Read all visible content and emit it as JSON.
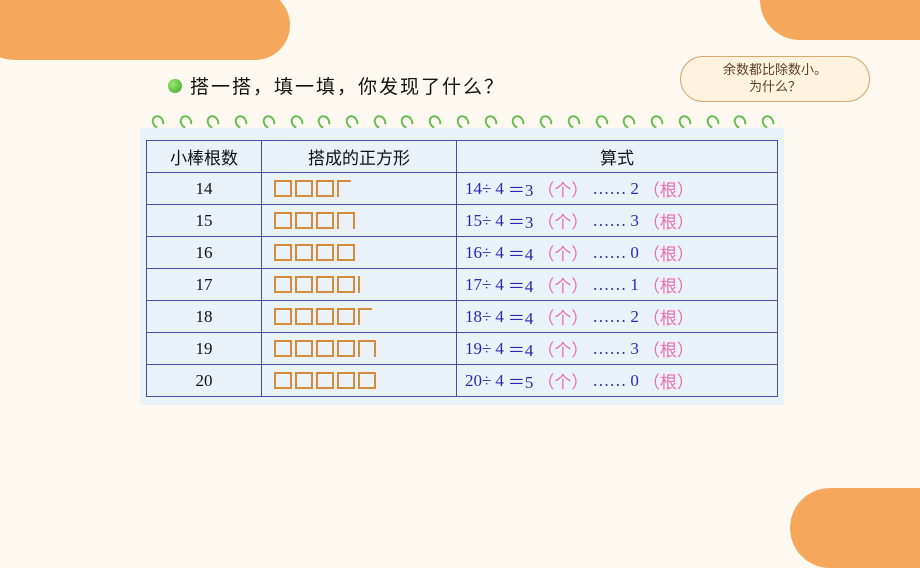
{
  "prompt": "搭一搭，填一填，你发现了什么？",
  "bubble": {
    "line1": "余数都比除数小。",
    "line2": "为什么？"
  },
  "table": {
    "headers": [
      "小棒根数",
      "搭成的正方形",
      "算式"
    ],
    "divisor": 4,
    "unit_q": "个",
    "unit_r": "根",
    "rows": [
      {
        "n": "14",
        "squares": 3,
        "extra": "L",
        "q": "3",
        "r": "2"
      },
      {
        "n": "15",
        "squares": 3,
        "extra": "U",
        "q": "3",
        "r": "3"
      },
      {
        "n": "16",
        "squares": 4,
        "extra": "",
        "q": "4",
        "r": "0"
      },
      {
        "n": "17",
        "squares": 4,
        "extra": "I",
        "q": "4",
        "r": "1"
      },
      {
        "n": "18",
        "squares": 4,
        "extra": "L",
        "q": "4",
        "r": "2"
      },
      {
        "n": "19",
        "squares": 4,
        "extra": "U",
        "q": "4",
        "r": "3"
      },
      {
        "n": "20",
        "squares": 5,
        "extra": "",
        "q": "5",
        "r": "0"
      }
    ]
  },
  "style": {
    "border_color": "#4a4da8",
    "shape_color": "#d68a3a",
    "formula_color": "#2828b8",
    "paren_color": "#e96fad",
    "bg": "#fdf9f0",
    "table_bg": "#eaf2f9",
    "font_size": 17
  }
}
